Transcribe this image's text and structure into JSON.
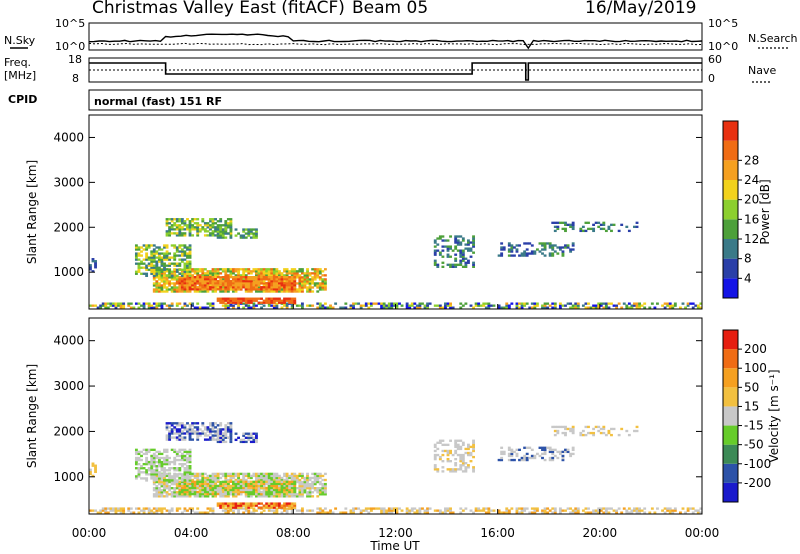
{
  "header": {
    "radar": "Christmas Valley East (fitACF)",
    "beam": "Beam 05",
    "date": "16/May/2019",
    "nsky_label": "N.Sky",
    "nsky_hi": "10^5",
    "nsky_lo": "10^0",
    "nsearch_label": "N.Search",
    "nsearch_hi": "10^5",
    "nsearch_lo": "10^0",
    "freq_label": "Freq.",
    "freq_unit": "[MHz]",
    "freq_hi": "18",
    "freq_lo": "8",
    "nave_label": "Nave",
    "nave_hi": "60",
    "nave_lo": "0",
    "cpid_label": "CPID",
    "cpid_text": "normal (fast) 151 RF"
  },
  "x_axis": {
    "label": "Time UT",
    "ticks": [
      "00:00",
      "04:00",
      "08:00",
      "12:00",
      "16:00",
      "20:00",
      "00:00"
    ]
  },
  "chart_data": [
    {
      "type": "heatmap",
      "title": "Power",
      "ylabel": "Slant Range [km]",
      "yticks": [
        1000,
        2000,
        3000,
        4000
      ],
      "ylim": [
        180,
        4500
      ],
      "xlabel": "Time UT",
      "xlim_hours": [
        0,
        24
      ],
      "colorbar": {
        "label": "Power [dB]",
        "ticks": [
          "4",
          "8",
          "12",
          "16",
          "20",
          "24",
          "28"
        ],
        "colors": [
          "#1414e6",
          "#2a3fa8",
          "#3a7a88",
          "#4da03a",
          "#8ccf2e",
          "#f2d21c",
          "#f5a020",
          "#f06c14",
          "#e83010"
        ]
      }
    },
    {
      "type": "heatmap",
      "title": "Velocity",
      "ylabel": "Slant Range [km]",
      "yticks": [
        1000,
        2000,
        3000,
        4000
      ],
      "ylim": [
        180,
        4500
      ],
      "xlabel": "Time UT",
      "xlim_hours": [
        0,
        24
      ],
      "colorbar": {
        "label": "Velocity [m s⁻¹]",
        "ticks": [
          "200",
          "100",
          "50",
          "15",
          "-15",
          "-50",
          "-100",
          "-200"
        ],
        "colors": [
          "#1a1acc",
          "#2c52a8",
          "#3c8a56",
          "#66cc2a",
          "#c8c8c8",
          "#f2c040",
          "#f5a020",
          "#f06c14",
          "#e61e10"
        ]
      }
    }
  ]
}
